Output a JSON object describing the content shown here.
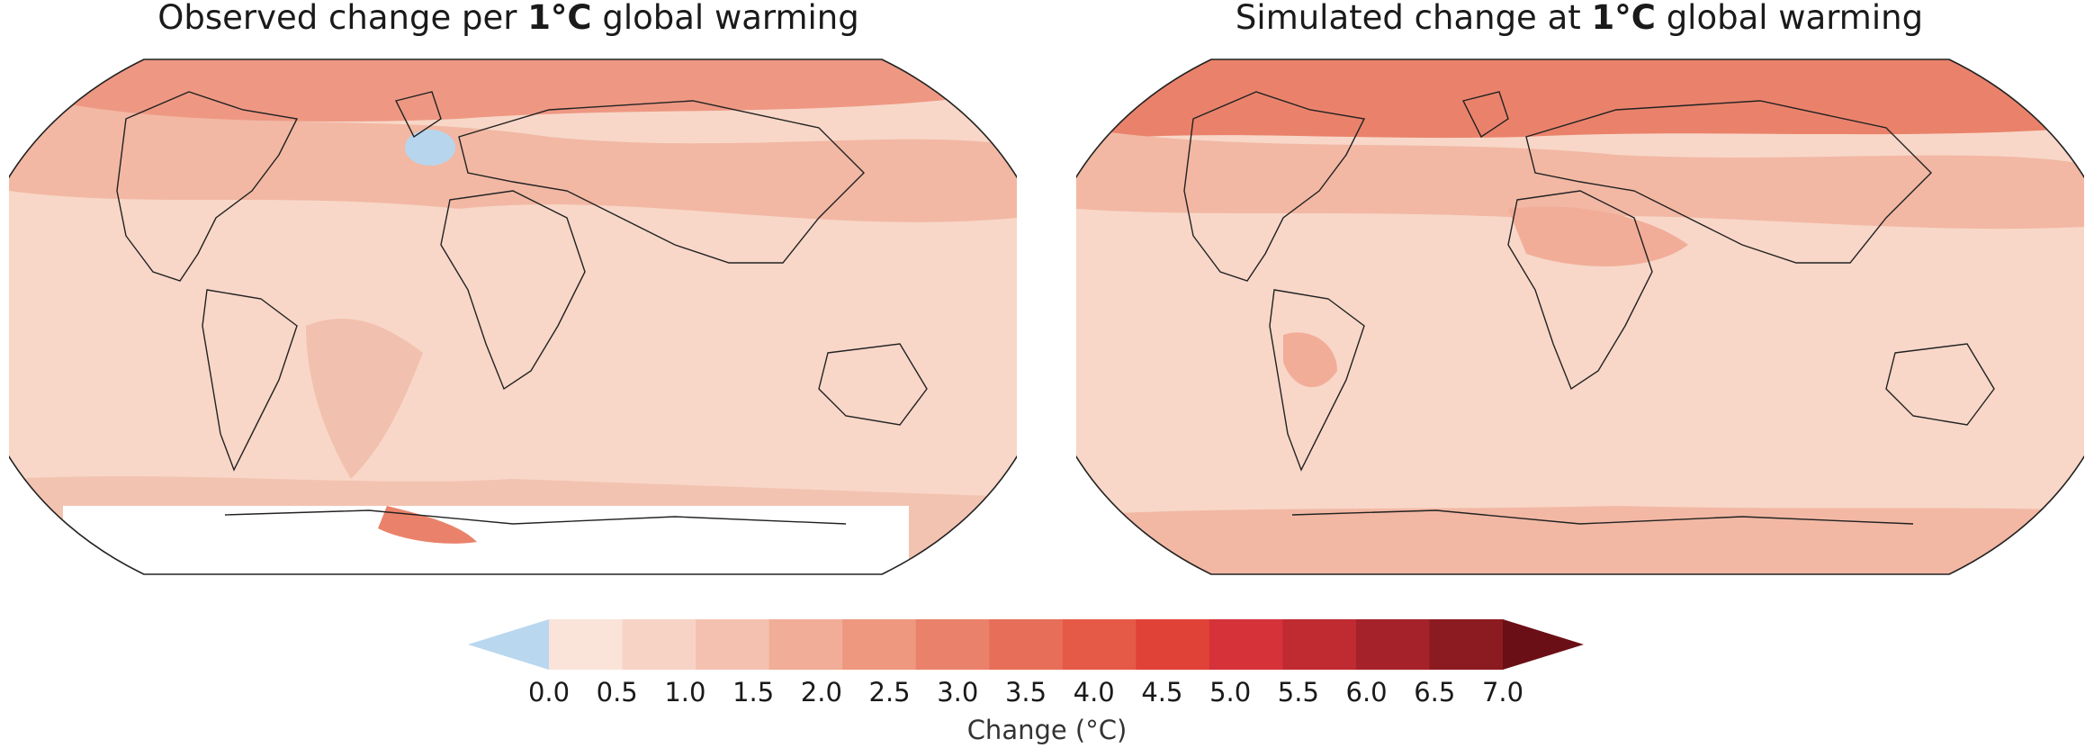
{
  "panels": [
    {
      "title_prefix": "Observed change per ",
      "title_bold": "1°C",
      "title_suffix": " global warming",
      "cold_spot_color": "#b7d6ee"
    },
    {
      "title_prefix": "Simulated change at ",
      "title_bold": "1°C",
      "title_suffix": " global warming"
    }
  ],
  "colorbar": {
    "label": "Change (°C)",
    "ticks": [
      "0.0",
      "0.5",
      "1.0",
      "1.5",
      "2.0",
      "2.5",
      "3.0",
      "3.5",
      "4.0",
      "4.5",
      "5.0",
      "5.5",
      "6.0",
      "6.5",
      "7.0"
    ],
    "below_color": "#b9d7ee",
    "colors": [
      "#fae3d9",
      "#f7d3c6",
      "#f4c1b0",
      "#f1ad98",
      "#ee9880",
      "#ea826b",
      "#e76e58",
      "#e55a47",
      "#e14237",
      "#d6323a",
      "#bf2b31",
      "#a6222a",
      "#8c1b21"
    ],
    "above_color": "#6b0f16"
  }
}
